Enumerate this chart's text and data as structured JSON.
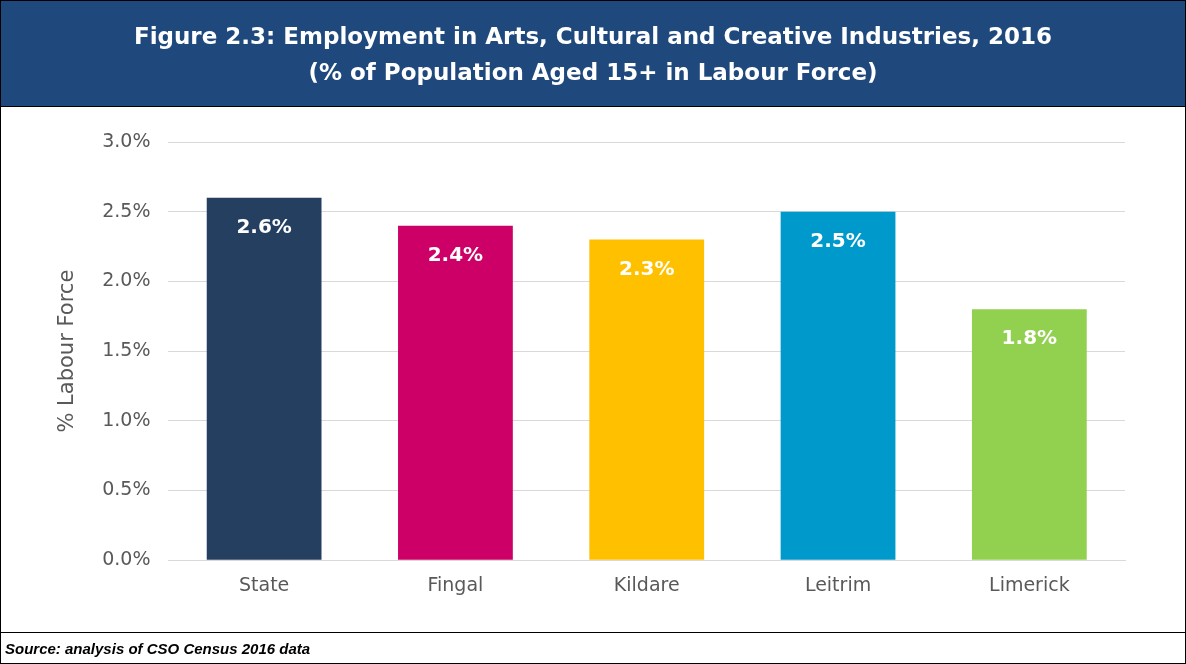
{
  "chart_data": {
    "type": "bar",
    "title": "Figure 2.3: Employment in Arts, Cultural and Creative Industries, 2016",
    "subtitle": "(% of Population Aged 15+ in Labour Force)",
    "ylabel": "% Labour Force",
    "categories": [
      "State",
      "Fingal",
      "Kildare",
      "Leitrim",
      "Limerick"
    ],
    "values": [
      2.6,
      2.4,
      2.3,
      2.5,
      1.8
    ],
    "value_labels": [
      "2.6%",
      "2.4%",
      "2.3%",
      "2.5%",
      "1.8%"
    ],
    "colors": [
      "#243f60",
      "#cc0066",
      "#ffc000",
      "#0099cc",
      "#92d050"
    ],
    "ylim": [
      0,
      3
    ],
    "yticks": [
      {
        "value": 0,
        "label": "0.0%"
      },
      {
        "value": 0.5,
        "label": "0.5%"
      },
      {
        "value": 1,
        "label": "1.0%"
      },
      {
        "value": 1.5,
        "label": "1.5%"
      },
      {
        "value": 2,
        "label": "2.0%"
      },
      {
        "value": 2.5,
        "label": "2.5%"
      },
      {
        "value": 3,
        "label": "3.0%"
      }
    ],
    "grid": "y",
    "legend": false,
    "annotations": [
      "Source: analysis of CSO Census 2016 data"
    ]
  }
}
